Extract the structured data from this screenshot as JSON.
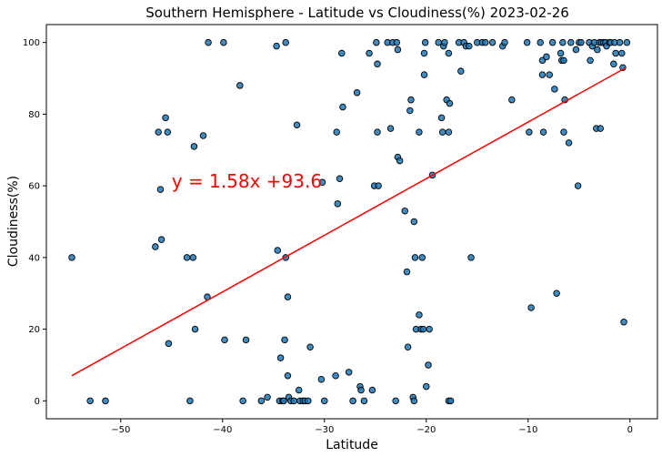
{
  "chart_data": {
    "type": "scatter",
    "title": "Southern Hemisphere - Latitude vs Cloudiness(%) 2023-02-26",
    "xlabel": "Latitude",
    "ylabel": "Cloudiness(%)",
    "xlim": [
      -57.3,
      2.7
    ],
    "ylim": [
      -5,
      105
    ],
    "x_ticks": [
      -50,
      -40,
      -30,
      -20,
      -10,
      0
    ],
    "y_ticks": [
      0,
      20,
      40,
      60,
      80,
      100
    ],
    "grid": false,
    "point_color": "#1f77b4",
    "line_color": "#ff0000",
    "annotation": {
      "text": "y = 1.58x +93.6",
      "color": "#ff0000",
      "x": -45,
      "y": 59.5
    },
    "regression": {
      "slope": 1.58,
      "intercept": 93.6,
      "x_range": [
        -54.8,
        -0.4
      ]
    },
    "points": [
      [
        -54.8,
        40
      ],
      [
        -53.0,
        0
      ],
      [
        -51.5,
        0
      ],
      [
        -46.6,
        43
      ],
      [
        -46.3,
        75
      ],
      [
        -46.1,
        59
      ],
      [
        -46.0,
        45
      ],
      [
        -45.6,
        79
      ],
      [
        -45.4,
        75
      ],
      [
        -45.3,
        16
      ],
      [
        -43.5,
        40
      ],
      [
        -43.2,
        0
      ],
      [
        -42.9,
        40
      ],
      [
        -42.8,
        71
      ],
      [
        -42.7,
        20
      ],
      [
        -41.9,
        74
      ],
      [
        -41.5,
        29
      ],
      [
        -41.4,
        100
      ],
      [
        -39.9,
        100
      ],
      [
        -39.8,
        17
      ],
      [
        -38.3,
        88
      ],
      [
        -38.0,
        0
      ],
      [
        -37.7,
        17
      ],
      [
        -36.2,
        0
      ],
      [
        -35.6,
        1
      ],
      [
        -34.7,
        99
      ],
      [
        -34.6,
        42
      ],
      [
        -34.4,
        0
      ],
      [
        -34.3,
        12
      ],
      [
        -34.1,
        0
      ],
      [
        -34.0,
        0
      ],
      [
        -33.8,
        100
      ],
      [
        -33.8,
        40
      ],
      [
        -33.9,
        17
      ],
      [
        -33.6,
        7
      ],
      [
        -33.6,
        29
      ],
      [
        -33.5,
        1
      ],
      [
        -33.3,
        0
      ],
      [
        -33.0,
        0
      ],
      [
        -32.7,
        77
      ],
      [
        -32.5,
        3
      ],
      [
        -32.4,
        0
      ],
      [
        -32.1,
        0
      ],
      [
        -31.9,
        0
      ],
      [
        -31.6,
        0
      ],
      [
        -31.4,
        15
      ],
      [
        -30.3,
        6
      ],
      [
        -30.0,
        0
      ],
      [
        -30.2,
        61
      ],
      [
        -28.9,
        7
      ],
      [
        -28.8,
        75
      ],
      [
        -28.7,
        55
      ],
      [
        -28.5,
        62
      ],
      [
        -28.2,
        82
      ],
      [
        -28.3,
        97
      ],
      [
        -27.6,
        8
      ],
      [
        -27.2,
        0
      ],
      [
        -26.8,
        86
      ],
      [
        -26.5,
        4
      ],
      [
        -26.4,
        3
      ],
      [
        -26.1,
        0
      ],
      [
        -25.6,
        97
      ],
      [
        -25.3,
        3
      ],
      [
        -25.1,
        60
      ],
      [
        -24.9,
        100
      ],
      [
        -24.8,
        94
      ],
      [
        -24.7,
        60
      ],
      [
        -24.8,
        75
      ],
      [
        -23.8,
        100
      ],
      [
        -23.5,
        76
      ],
      [
        -23.3,
        100
      ],
      [
        -22.9,
        100
      ],
      [
        -23.0,
        0
      ],
      [
        -22.8,
        68
      ],
      [
        -22.6,
        67
      ],
      [
        -22.8,
        98
      ],
      [
        -22.1,
        53
      ],
      [
        -21.9,
        36
      ],
      [
        -21.8,
        15
      ],
      [
        -21.6,
        81
      ],
      [
        -21.5,
        84
      ],
      [
        -21.3,
        1
      ],
      [
        -21.2,
        0
      ],
      [
        -21.2,
        50
      ],
      [
        -21.1,
        40
      ],
      [
        -21.0,
        20
      ],
      [
        -20.7,
        24
      ],
      [
        -20.7,
        75
      ],
      [
        -20.5,
        20
      ],
      [
        -20.4,
        40
      ],
      [
        -20.3,
        20
      ],
      [
        -20.2,
        97
      ],
      [
        -20.2,
        91
      ],
      [
        -20.1,
        100
      ],
      [
        -20.0,
        4
      ],
      [
        -19.8,
        10
      ],
      [
        -19.7,
        20
      ],
      [
        -19.4,
        63
      ],
      [
        -18.8,
        100
      ],
      [
        -18.5,
        79
      ],
      [
        -18.4,
        75
      ],
      [
        -18.3,
        99
      ],
      [
        -18.2,
        100
      ],
      [
        -18.0,
        84
      ],
      [
        -17.8,
        0
      ],
      [
        -17.8,
        97
      ],
      [
        -17.6,
        0
      ],
      [
        -17.7,
        83
      ],
      [
        -17.8,
        75
      ],
      [
        -16.8,
        100
      ],
      [
        -16.6,
        92
      ],
      [
        -16.3,
        100
      ],
      [
        -16.1,
        99
      ],
      [
        -15.8,
        99
      ],
      [
        -15.6,
        40
      ],
      [
        -15.0,
        100
      ],
      [
        -14.5,
        100
      ],
      [
        -14.2,
        100
      ],
      [
        -13.5,
        100
      ],
      [
        -12.5,
        99
      ],
      [
        -12.3,
        100
      ],
      [
        -11.6,
        84
      ],
      [
        -10.1,
        100
      ],
      [
        -9.9,
        75
      ],
      [
        -9.7,
        26
      ],
      [
        -8.8,
        100
      ],
      [
        -8.6,
        91
      ],
      [
        -8.6,
        95
      ],
      [
        -8.5,
        75
      ],
      [
        -8.2,
        96
      ],
      [
        -7.9,
        91
      ],
      [
        -7.6,
        100
      ],
      [
        -7.4,
        87
      ],
      [
        -7.2,
        30
      ],
      [
        -6.8,
        97
      ],
      [
        -6.7,
        95
      ],
      [
        -6.6,
        100
      ],
      [
        -6.5,
        95
      ],
      [
        -6.5,
        75
      ],
      [
        -6.4,
        84
      ],
      [
        -6.0,
        72
      ],
      [
        -5.8,
        100
      ],
      [
        -5.3,
        98
      ],
      [
        -5.1,
        60
      ],
      [
        -5.0,
        100
      ],
      [
        -4.8,
        100
      ],
      [
        -4.0,
        100
      ],
      [
        -3.9,
        95
      ],
      [
        -3.7,
        99
      ],
      [
        -3.5,
        100
      ],
      [
        -3.3,
        76
      ],
      [
        -3.2,
        98
      ],
      [
        -3.0,
        100
      ],
      [
        -2.9,
        76
      ],
      [
        -2.8,
        100
      ],
      [
        -2.6,
        100
      ],
      [
        -2.4,
        100
      ],
      [
        -2.3,
        99
      ],
      [
        -2.0,
        100
      ],
      [
        -1.9,
        100
      ],
      [
        -1.6,
        94
      ],
      [
        -1.5,
        100
      ],
      [
        -1.4,
        97
      ],
      [
        -1.0,
        100
      ],
      [
        -0.8,
        97
      ],
      [
        -0.7,
        93
      ],
      [
        -0.6,
        22
      ],
      [
        -0.3,
        100
      ]
    ]
  }
}
